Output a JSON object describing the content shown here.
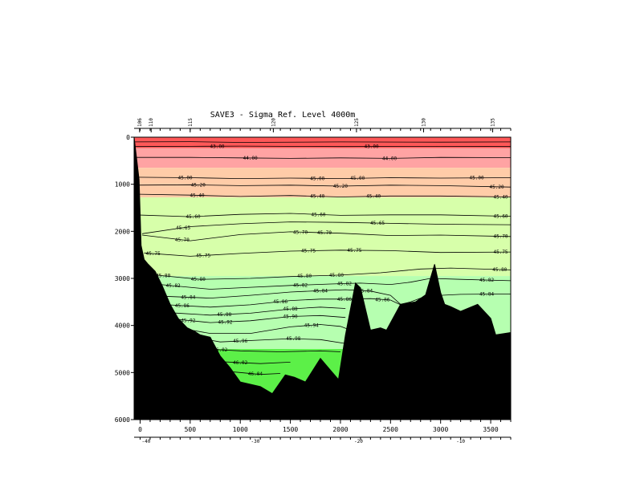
{
  "chart_data": {
    "type": "contour",
    "title": "SAVE3 - Sigma Ref. Level 4000m",
    "xlabel": "",
    "ylabel": "",
    "xlim": [
      -60,
      3700
    ],
    "ylim": [
      6000,
      0
    ],
    "x_ticks": [
      0,
      500,
      1000,
      1500,
      2000,
      2500,
      3000,
      3500
    ],
    "y_ticks": [
      0,
      1000,
      2000,
      3000,
      4000,
      5000,
      6000
    ],
    "top_stations": [
      {
        "x": -5,
        "label": "106"
      },
      {
        "x": 110,
        "label": "110"
      },
      {
        "x": 500,
        "label": "115"
      },
      {
        "x": 1330,
        "label": "120"
      },
      {
        "x": 2160,
        "label": "125"
      },
      {
        "x": 2830,
        "label": "130"
      },
      {
        "x": 3520,
        "label": "135"
      }
    ],
    "bottom_axis": [
      {
        "x": 60,
        "label": "-40"
      },
      {
        "x": 1150,
        "label": "-30"
      },
      {
        "x": 2180,
        "label": "-20"
      },
      {
        "x": 3200,
        "label": "-10"
      }
    ],
    "bands": [
      {
        "lo": 0,
        "hi": 230,
        "color": "#ff5858"
      },
      {
        "lo": 230,
        "hi": 650,
        "color": "#ffa3a3"
      },
      {
        "lo": 650,
        "hi": 1280,
        "color": "#ffcca8"
      },
      {
        "lo": 1280,
        "hi": 2950,
        "color": "#d7ffaa"
      },
      {
        "lo": 2950,
        "hi": 4500,
        "color": "#b6ffb0"
      },
      {
        "lo": 4500,
        "hi": 6000,
        "color": "#5cf048"
      }
    ],
    "isolines": [
      {
        "d": [
          [
            -60,
            100
          ],
          [
            500,
            95
          ],
          [
            1000,
            110
          ],
          [
            2000,
            100
          ],
          [
            3000,
            105
          ],
          [
            3700,
            100
          ]
        ],
        "labels": []
      },
      {
        "d": [
          [
            -60,
            200
          ],
          [
            500,
            195
          ],
          [
            1000,
            190
          ],
          [
            2000,
            200
          ],
          [
            3000,
            195
          ],
          [
            3700,
            200
          ]
        ],
        "labels": [
          {
            "x": 770,
            "text": "43.00"
          },
          {
            "x": 2310,
            "text": "43.00"
          }
        ]
      },
      {
        "d": [
          [
            -60,
            430
          ],
          [
            500,
            430
          ],
          [
            1000,
            440
          ],
          [
            1500,
            450
          ],
          [
            2000,
            440
          ],
          [
            2500,
            450
          ],
          [
            3000,
            430
          ],
          [
            3700,
            435
          ]
        ],
        "labels": [
          {
            "x": 1100,
            "text": "44.00"
          },
          {
            "x": 2490,
            "text": "44.00"
          }
        ]
      },
      {
        "d": [
          [
            -60,
            850
          ],
          [
            500,
            860
          ],
          [
            1000,
            880
          ],
          [
            1500,
            870
          ],
          [
            2000,
            880
          ],
          [
            2500,
            860
          ],
          [
            3000,
            870
          ],
          [
            3700,
            860
          ]
        ],
        "labels": [
          {
            "x": 450,
            "text": "45.00"
          },
          {
            "x": 1770,
            "text": "45.00"
          },
          {
            "x": 2170,
            "text": "45.00"
          },
          {
            "x": 3360,
            "text": "45.00"
          }
        ]
      },
      {
        "d": [
          [
            -60,
            1020
          ],
          [
            500,
            1010
          ],
          [
            1000,
            1030
          ],
          [
            1500,
            1020
          ],
          [
            2000,
            1040
          ],
          [
            2500,
            1020
          ],
          [
            3000,
            1030
          ],
          [
            3700,
            1060
          ]
        ],
        "labels": [
          {
            "x": 580,
            "text": "45.20"
          },
          {
            "x": 2000,
            "text": "45.20"
          },
          {
            "x": 3560,
            "text": "45.20"
          }
        ]
      },
      {
        "d": [
          [
            -60,
            1210
          ],
          [
            500,
            1230
          ],
          [
            1000,
            1260
          ],
          [
            1500,
            1240
          ],
          [
            2000,
            1270
          ],
          [
            2500,
            1250
          ],
          [
            3000,
            1250
          ],
          [
            3700,
            1270
          ]
        ],
        "labels": [
          {
            "x": 570,
            "text": "45.40"
          },
          {
            "x": 1770,
            "text": "45.40"
          },
          {
            "x": 2330,
            "text": "45.40"
          },
          {
            "x": 3600,
            "text": "45.40"
          }
        ]
      },
      {
        "d": [
          [
            -60,
            1650
          ],
          [
            500,
            1690
          ],
          [
            1000,
            1640
          ],
          [
            1500,
            1620
          ],
          [
            2000,
            1660
          ],
          [
            2500,
            1650
          ],
          [
            3000,
            1650
          ],
          [
            3700,
            1680
          ]
        ],
        "labels": [
          {
            "x": 530,
            "text": "45.60"
          },
          {
            "x": 1780,
            "text": "45.60"
          },
          {
            "x": 3600,
            "text": "45.60"
          }
        ]
      },
      {
        "d": [
          [
            20,
            2050
          ],
          [
            500,
            1900
          ],
          [
            1000,
            1840
          ],
          [
            1500,
            1800
          ],
          [
            2000,
            1810
          ],
          [
            2500,
            1830
          ],
          [
            3000,
            1850
          ],
          [
            3700,
            1860
          ]
        ],
        "labels": [
          {
            "x": 430,
            "text": "45.65"
          },
          {
            "x": 2370,
            "text": "45.65"
          }
        ]
      },
      {
        "d": [
          [
            20,
            2080
          ],
          [
            500,
            2200
          ],
          [
            1000,
            2070
          ],
          [
            1500,
            2010
          ],
          [
            2000,
            2040
          ],
          [
            2500,
            2090
          ],
          [
            3000,
            2080
          ],
          [
            3700,
            2110
          ]
        ],
        "labels": [
          {
            "x": 420,
            "text": "45.70"
          },
          {
            "x": 1600,
            "text": "45.70"
          },
          {
            "x": 1840,
            "text": "45.70"
          },
          {
            "x": 3600,
            "text": "45.70"
          }
        ]
      },
      {
        "d": [
          [
            40,
            2460
          ],
          [
            500,
            2530
          ],
          [
            1000,
            2470
          ],
          [
            1500,
            2420
          ],
          [
            2000,
            2400
          ],
          [
            2500,
            2410
          ],
          [
            3000,
            2450
          ],
          [
            3700,
            2440
          ]
        ],
        "labels": [
          {
            "x": 130,
            "text": "45.75"
          },
          {
            "x": 630,
            "text": "45.75"
          },
          {
            "x": 1680,
            "text": "45.75"
          },
          {
            "x": 2140,
            "text": "45.75"
          },
          {
            "x": 3600,
            "text": "45.75"
          }
        ]
      },
      {
        "d": [
          [
            160,
            2930
          ],
          [
            600,
            3020
          ],
          [
            1100,
            3000
          ],
          [
            1500,
            2960
          ],
          [
            2000,
            2930
          ],
          [
            2400,
            2880
          ],
          [
            2800,
            2800
          ],
          [
            3100,
            2780
          ],
          [
            3700,
            2820
          ]
        ],
        "labels": [
          {
            "x": 230,
            "text": "45.80"
          },
          {
            "x": 580,
            "text": "45.80"
          },
          {
            "x": 1640,
            "text": "45.80"
          },
          {
            "x": 1960,
            "text": "45.80"
          },
          {
            "x": 3590,
            "text": "45.80"
          }
        ]
      },
      {
        "d": [
          [
            200,
            3130
          ],
          [
            700,
            3230
          ],
          [
            1100,
            3190
          ],
          [
            1500,
            3150
          ],
          [
            1900,
            3120
          ],
          [
            2200,
            3100
          ],
          [
            2500,
            3130
          ],
          [
            2700,
            3080
          ],
          [
            2900,
            3000
          ],
          [
            3200,
            3020
          ],
          [
            3700,
            3050
          ]
        ],
        "labels": [
          {
            "x": 330,
            "text": "45.82"
          },
          {
            "x": 1600,
            "text": "45.82"
          },
          {
            "x": 2040,
            "text": "45.82"
          },
          {
            "x": 3460,
            "text": "45.82"
          }
        ]
      },
      {
        "d": [
          [
            240,
            3380
          ],
          [
            700,
            3420
          ],
          [
            1100,
            3360
          ],
          [
            1500,
            3290
          ],
          [
            1800,
            3260
          ],
          [
            2050,
            3240
          ],
          [
            2300,
            3270
          ],
          [
            2500,
            3360
          ],
          [
            2600,
            3550
          ],
          [
            2700,
            3500
          ],
          [
            2850,
            3380
          ],
          [
            3000,
            3360
          ],
          [
            3200,
            3340
          ],
          [
            3700,
            3330
          ]
        ],
        "labels": [
          {
            "x": 480,
            "text": "45.84"
          },
          {
            "x": 1800,
            "text": "45.84"
          },
          {
            "x": 2250,
            "text": "45.84"
          },
          {
            "x": 3460,
            "text": "45.84"
          }
        ]
      },
      {
        "d": [
          [
            270,
            3560
          ],
          [
            700,
            3610
          ],
          [
            1100,
            3560
          ],
          [
            1500,
            3470
          ],
          [
            1800,
            3440
          ],
          [
            2050,
            3440
          ],
          [
            2300,
            3430
          ],
          [
            2500,
            3460
          ],
          [
            2600,
            3560
          ]
        ],
        "labels": [
          {
            "x": 420,
            "text": "45.86"
          },
          {
            "x": 1400,
            "text": "45.86"
          },
          {
            "x": 2040,
            "text": "45.86"
          },
          {
            "x": 2420,
            "text": "45.86"
          }
        ]
      },
      {
        "d": [
          [
            300,
            3730
          ],
          [
            700,
            3780
          ],
          [
            1100,
            3740
          ],
          [
            1500,
            3650
          ],
          [
            1800,
            3610
          ],
          [
            2050,
            3640
          ]
        ],
        "labels": [
          {
            "x": 840,
            "text": "45.88"
          },
          {
            "x": 1500,
            "text": "45.88"
          }
        ]
      },
      {
        "d": [
          [
            330,
            3860
          ],
          [
            700,
            3940
          ],
          [
            1100,
            3900
          ],
          [
            1500,
            3810
          ],
          [
            1800,
            3790
          ],
          [
            2050,
            3830
          ]
        ],
        "labels": [
          {
            "x": 480,
            "text": "45.92"
          },
          {
            "x": 850,
            "text": "45.92"
          },
          {
            "x": 1500,
            "text": "45.90"
          }
        ]
      },
      {
        "d": [
          [
            380,
            4050
          ],
          [
            700,
            4170
          ],
          [
            1100,
            4170
          ],
          [
            1500,
            4030
          ],
          [
            1800,
            3980
          ],
          [
            2000,
            4020
          ],
          [
            2100,
            4100
          ]
        ],
        "labels": [
          {
            "x": 1710,
            "text": "45.94"
          }
        ]
      },
      {
        "d": [
          [
            480,
            4230
          ],
          [
            800,
            4350
          ],
          [
            1200,
            4310
          ],
          [
            1500,
            4280
          ],
          [
            1800,
            4300
          ],
          [
            2100,
            4400
          ]
        ],
        "labels": [
          {
            "x": 550,
            "text": "45.98"
          },
          {
            "x": 1000,
            "text": "45.96"
          },
          {
            "x": 1530,
            "text": "45.98"
          }
        ]
      },
      {
        "d": [
          [
            650,
            4500
          ],
          [
            1000,
            4540
          ],
          [
            1400,
            4560
          ],
          [
            1800,
            4540
          ],
          [
            2000,
            4560
          ]
        ],
        "labels": [
          {
            "x": 800,
            "text": "46.02"
          }
        ]
      },
      {
        "d": [
          [
            800,
            4770
          ],
          [
            1200,
            4810
          ],
          [
            1500,
            4780
          ]
        ],
        "labels": [
          {
            "x": 1000,
            "text": "46.02"
          }
        ]
      },
      {
        "d": [
          [
            900,
            4980
          ],
          [
            1200,
            5040
          ],
          [
            1400,
            5020
          ]
        ],
        "labels": [
          {
            "x": 1150,
            "text": "46.04"
          }
        ]
      }
    ],
    "bathymetry": [
      [
        -60,
        0
      ],
      [
        -10,
        900
      ],
      [
        10,
        2300
      ],
      [
        40,
        2600
      ],
      [
        80,
        2700
      ],
      [
        150,
        2850
      ],
      [
        220,
        3150
      ],
      [
        300,
        3550
      ],
      [
        380,
        3850
      ],
      [
        470,
        4050
      ],
      [
        540,
        4120
      ],
      [
        600,
        4200
      ],
      [
        700,
        4250
      ],
      [
        800,
        4650
      ],
      [
        900,
        4900
      ],
      [
        1000,
        5200
      ],
      [
        1100,
        5250
      ],
      [
        1200,
        5300
      ],
      [
        1320,
        5450
      ],
      [
        1450,
        5050
      ],
      [
        1540,
        5100
      ],
      [
        1650,
        5200
      ],
      [
        1800,
        4700
      ],
      [
        1900,
        4950
      ],
      [
        1980,
        5150
      ],
      [
        2050,
        4200
      ],
      [
        2150,
        3100
      ],
      [
        2200,
        3200
      ],
      [
        2300,
        4100
      ],
      [
        2400,
        4050
      ],
      [
        2460,
        4100
      ],
      [
        2600,
        3550
      ],
      [
        2750,
        3500
      ],
      [
        2850,
        3350
      ],
      [
        2940,
        2700
      ],
      [
        3000,
        3300
      ],
      [
        3040,
        3550
      ],
      [
        3100,
        3600
      ],
      [
        3200,
        3700
      ],
      [
        3370,
        3550
      ],
      [
        3500,
        3850
      ],
      [
        3550,
        4200
      ],
      [
        3700,
        4150
      ],
      [
        3700,
        6000
      ],
      [
        -60,
        6000
      ]
    ]
  }
}
